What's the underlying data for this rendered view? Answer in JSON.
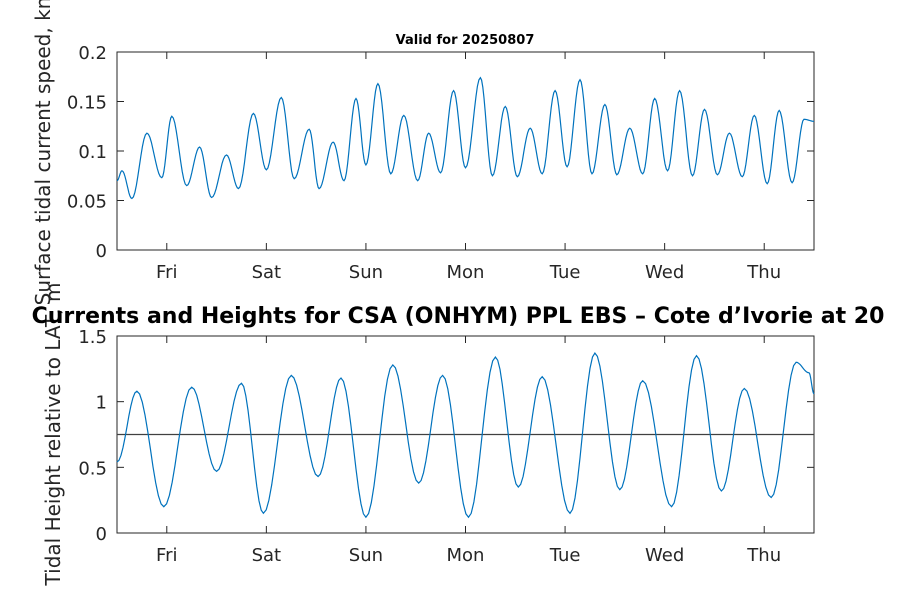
{
  "figure": {
    "main_title": "Currents and Heights for CSA (ONHYM) PPL EBS  – Cote d’Ivorie at 20",
    "colors": {
      "series": "#0072bd",
      "axes": "#262626",
      "reference_line": "#404040",
      "background": "#ffffff"
    }
  },
  "chart_data": [
    {
      "type": "line",
      "title": "Valid for 20250807",
      "ylabel": "Surface tidal current speed, kn",
      "xlabel": "",
      "ylim": [
        0,
        0.2
      ],
      "yticks": [
        0,
        0.05,
        0.1,
        0.15,
        0.2
      ],
      "ytick_labels": [
        "0",
        "0.05",
        "0.1",
        "0.15",
        "0.2"
      ],
      "xlim_days": [
        0,
        7
      ],
      "xticks_days": [
        0.5,
        1.5,
        2.5,
        3.5,
        4.5,
        5.5,
        6.5
      ],
      "xtick_labels": [
        "Fri",
        "Sat",
        "Sun",
        "Mon",
        "Tue",
        "Wed",
        "Thu"
      ],
      "grid": false,
      "series": [
        {
          "x_days": [
            0,
            0.05,
            0.15,
            0.3,
            0.45,
            0.55,
            0.7,
            0.83,
            0.95,
            1.1,
            1.22,
            1.37,
            1.5,
            1.65,
            1.78,
            1.93,
            2.03,
            2.17,
            2.28,
            2.4,
            2.5,
            2.62,
            2.75,
            2.88,
            3.02,
            3.13,
            3.25,
            3.38,
            3.5,
            3.65,
            3.77,
            3.9,
            4.02,
            4.15,
            4.27,
            4.4,
            4.52,
            4.65,
            4.77,
            4.9,
            5.02,
            5.15,
            5.28,
            5.4,
            5.53,
            5.65,
            5.78,
            5.9,
            6.03,
            6.15,
            6.28,
            6.4,
            6.53,
            6.65,
            6.78,
            6.9,
            7.0
          ],
          "values": [
            0.07,
            0.08,
            0.052,
            0.118,
            0.073,
            0.135,
            0.065,
            0.104,
            0.053,
            0.096,
            0.062,
            0.138,
            0.081,
            0.154,
            0.072,
            0.122,
            0.062,
            0.109,
            0.07,
            0.153,
            0.086,
            0.168,
            0.077,
            0.136,
            0.07,
            0.118,
            0.078,
            0.161,
            0.083,
            0.174,
            0.075,
            0.145,
            0.074,
            0.123,
            0.077,
            0.161,
            0.084,
            0.172,
            0.077,
            0.147,
            0.076,
            0.123,
            0.077,
            0.153,
            0.08,
            0.161,
            0.075,
            0.142,
            0.076,
            0.118,
            0.074,
            0.136,
            0.067,
            0.141,
            0.068,
            0.132,
            0.13
          ]
        }
      ]
    },
    {
      "type": "line",
      "title": "",
      "ylabel": "Tidal Height relative to LAT, m",
      "xlabel": "",
      "ylim": [
        0,
        1.5
      ],
      "yticks": [
        0,
        0.5,
        1,
        1.5
      ],
      "ytick_labels": [
        "0",
        "0.5",
        "1",
        "1.5"
      ],
      "xlim_days": [
        0,
        7
      ],
      "xticks_days": [
        0.5,
        1.5,
        2.5,
        3.5,
        4.5,
        5.5,
        6.5
      ],
      "xtick_labels": [
        "Fri",
        "Sat",
        "Sun",
        "Mon",
        "Tue",
        "Wed",
        "Thu"
      ],
      "grid": false,
      "reference_line": {
        "y": 0.75
      },
      "series": [
        {
          "x_days": [
            0,
            0.2,
            0.47,
            0.75,
            1.0,
            1.25,
            1.47,
            1.75,
            2.02,
            2.25,
            2.5,
            2.77,
            3.03,
            3.27,
            3.53,
            3.8,
            4.03,
            4.27,
            4.55,
            4.8,
            5.05,
            5.28,
            5.57,
            5.82,
            6.07,
            6.3,
            6.57,
            6.82,
            6.95,
            7.0
          ],
          "values": [
            0.54,
            1.08,
            0.2,
            1.11,
            0.47,
            1.14,
            0.15,
            1.2,
            0.43,
            1.18,
            0.12,
            1.28,
            0.38,
            1.2,
            0.12,
            1.34,
            0.35,
            1.19,
            0.15,
            1.37,
            0.33,
            1.16,
            0.2,
            1.35,
            0.32,
            1.1,
            0.27,
            1.3,
            1.22,
            1.06
          ]
        }
      ]
    }
  ]
}
